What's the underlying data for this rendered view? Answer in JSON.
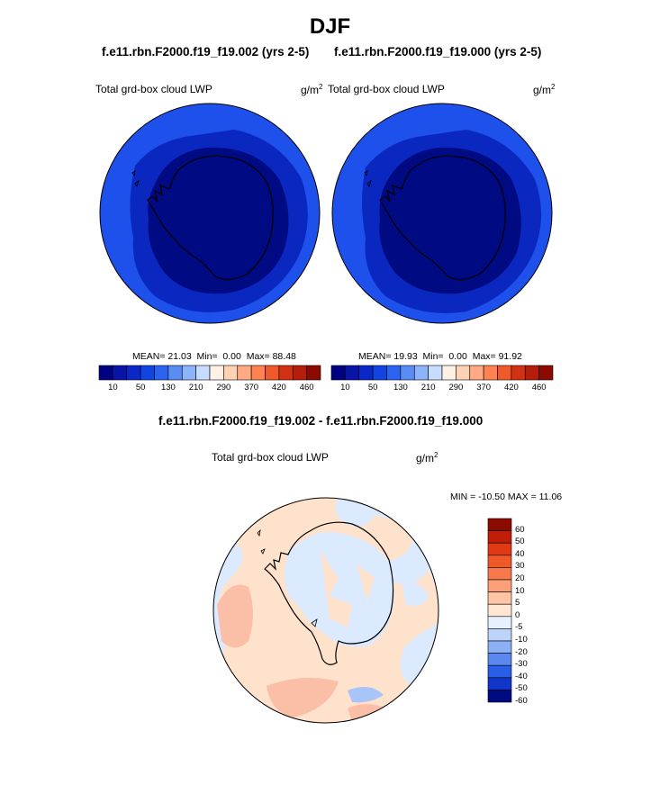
{
  "title": "DJF",
  "subtitles": {
    "left": "f.e11.rbn.F2000.f19_f19.002 (yrs 2-5)",
    "right": "f.e11.rbn.F2000.f19_f19.000 (yrs 2-5)",
    "diff": "f.e11.rbn.F2000.f19_f19.002 - f.e11.rbn.F2000.f19_f19.000"
  },
  "variable_label": "Total grd-box cloud LWP",
  "units": {
    "base": "g/m",
    "exponent": "2"
  },
  "panels": [
    {
      "id": "left",
      "mean_label": "MEAN=",
      "mean": "21.03",
      "min_label": "Min=",
      "min": "0.00",
      "max_label": "Max=",
      "max": "88.48"
    },
    {
      "id": "right",
      "mean_label": "MEAN=",
      "mean": "19.93",
      "min_label": "Min=",
      "min": "0.00",
      "max_label": "Max=",
      "max": "91.92"
    }
  ],
  "diff_panel": {
    "range_text": "MIN = -10.50 MAX =  11.06"
  },
  "colorbar_levels": {
    "tick_labels": [
      "10",
      "50",
      "130",
      "210",
      "290",
      "370",
      "420",
      "460"
    ],
    "colors": [
      "#000080",
      "#0714a6",
      "#0a28c8",
      "#1244e2",
      "#2a64f0",
      "#5a8cf5",
      "#8cb4fa",
      "#c8dcff",
      "#fff0e6",
      "#ffd2b4",
      "#ffaa82",
      "#ff8250",
      "#f05a28",
      "#d23214",
      "#b41e0a",
      "#8c0a00"
    ]
  },
  "diff_colorbar": {
    "labels": [
      "60",
      "50",
      "40",
      "30",
      "20",
      "10",
      "5",
      "0",
      "-5",
      "-10",
      "-20",
      "-30",
      "-40",
      "-50",
      "-60"
    ],
    "colors": [
      "#8c0a00",
      "#c01e08",
      "#e03a14",
      "#f05a28",
      "#f87a4c",
      "#fba078",
      "#ffc4a4",
      "#ffe6d4",
      "#e6f0ff",
      "#bcd4fa",
      "#8cb0f5",
      "#5a88ee",
      "#2a5ee6",
      "#1035c8",
      "#000a80"
    ]
  },
  "map_colors": {
    "outer": "#1e50ec",
    "middle": "#0a28c0",
    "inner": "#000a82",
    "diff_base": "#dceaff",
    "diff_pos": "#ffe2cc",
    "diff_pos_strong": "#fbbfa8",
    "diff_neg_strong": "#a8c4f8"
  }
}
